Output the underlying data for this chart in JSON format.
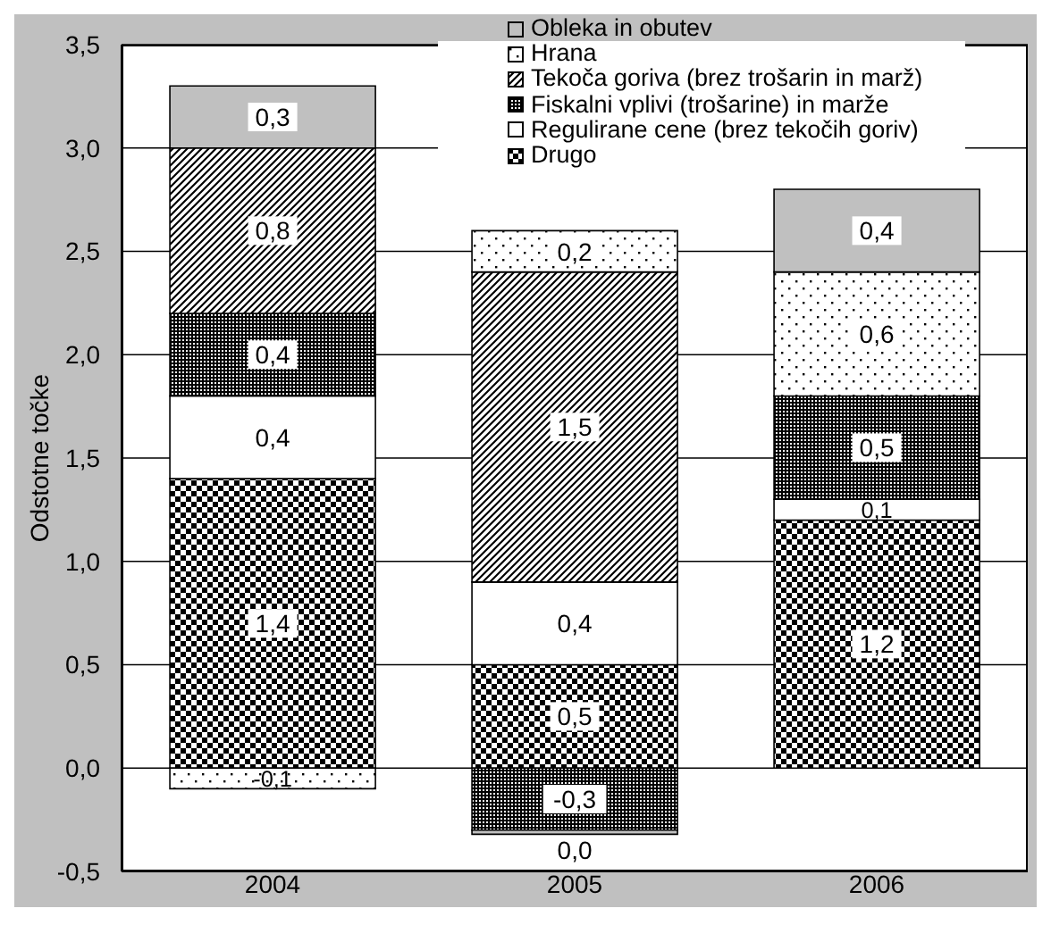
{
  "chart_data": {
    "type": "bar",
    "stacked": true,
    "categories": [
      "2004",
      "2005",
      "2006"
    ],
    "series": [
      {
        "name": "Drugo",
        "color": "#000000",
        "values": [
          1.4,
          0.5,
          1.2
        ],
        "value_labels": [
          "1,4",
          "0,5",
          "1,2"
        ]
      },
      {
        "name": "Regulirane cene (brez tekočih goriv)",
        "color": "#ffffff",
        "values": [
          0.4,
          0.4,
          0.1
        ],
        "value_labels": [
          "0,4",
          "0,4",
          "0,1"
        ]
      },
      {
        "name": "Fiskalni vplivi (trošarine) in marže",
        "color": "#000000",
        "values": [
          0.4,
          -0.3,
          0.5
        ],
        "value_labels": [
          "0,4",
          "-0,3",
          "0,5"
        ]
      },
      {
        "name": "Tekoča goriva (brez trošarin in marž)",
        "color": "#000000",
        "values": [
          0.8,
          1.5,
          null
        ],
        "value_labels": [
          "0,8",
          "1,5",
          null
        ]
      },
      {
        "name": "Hrana",
        "color": "#000000",
        "values": [
          -0.1,
          0.2,
          0.6
        ],
        "value_labels": [
          "-0,1",
          "0,2",
          "0,6"
        ]
      },
      {
        "name": "Obleka in obutev",
        "color": "#c0c0c0",
        "values": [
          0.3,
          -0.02,
          0.4
        ],
        "value_labels": [
          "0,3",
          "0,0",
          "0,4"
        ]
      }
    ],
    "ylabel": "Odstotne točke",
    "ylim": [
      -0.5,
      3.5
    ],
    "yticks": [
      {
        "value": -0.5,
        "label": "-0,5"
      },
      {
        "value": 0,
        "label": "0,0"
      },
      {
        "value": 0.5,
        "label": "0,5"
      },
      {
        "value": 1,
        "label": "1,0"
      },
      {
        "value": 1.5,
        "label": "1,5"
      },
      {
        "value": 2,
        "label": "2,0"
      },
      {
        "value": 2.5,
        "label": "2,5"
      },
      {
        "value": 3,
        "label": "3,0"
      },
      {
        "value": 3.5,
        "label": "3,5"
      }
    ],
    "grid": "y",
    "legend": "top right"
  }
}
